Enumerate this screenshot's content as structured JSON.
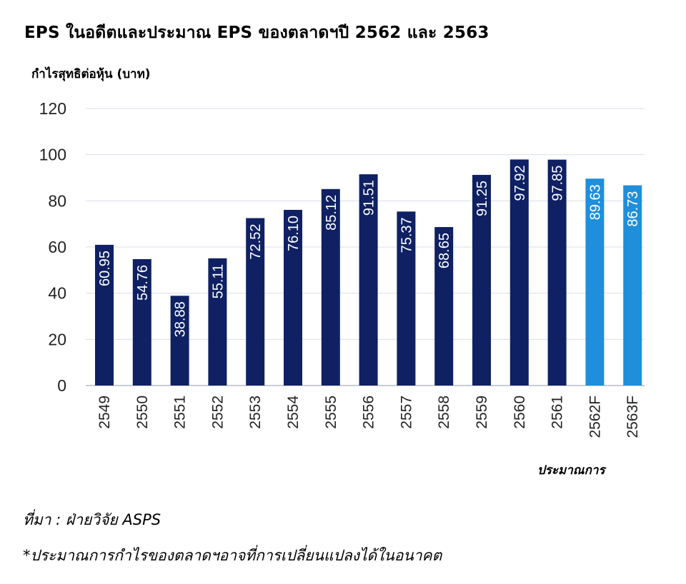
{
  "chart_data": {
    "type": "bar",
    "title": "EPS ในอดีตและประมาณ EPS ของตลาดฯปี 2562 และ 2563",
    "ylabel": "กำไรสุทธิต่อหุ้น (บาท)",
    "xlabel": "",
    "forecast_note": "ประมาณการ",
    "ylim": [
      0,
      120
    ],
    "yticks": [
      0,
      20,
      40,
      60,
      80,
      100,
      120
    ],
    "grid": true,
    "categories": [
      "2549",
      "2550",
      "2551",
      "2552",
      "2553",
      "2554",
      "2555",
      "2556",
      "2557",
      "2558",
      "2559",
      "2560",
      "2561",
      "2562F",
      "2563F"
    ],
    "values": [
      60.95,
      54.76,
      38.88,
      55.11,
      72.52,
      76.1,
      85.12,
      91.51,
      75.37,
      68.65,
      91.25,
      97.92,
      97.85,
      89.63,
      86.73
    ],
    "value_labels": [
      "60.95",
      "54.76",
      "38.88",
      "55.11",
      "72.52",
      "76.10",
      "85.12",
      "91.51",
      "75.37",
      "68.65",
      "91.25",
      "97.92",
      "97.85",
      "89.63",
      "86.73"
    ],
    "forecast": [
      false,
      false,
      false,
      false,
      false,
      false,
      false,
      false,
      false,
      false,
      false,
      false,
      false,
      true,
      true
    ],
    "colors": {
      "actual": "#0f2163",
      "forecast": "#1f8fdc",
      "grid": "#d9dee8",
      "axis": "#b8bcc6"
    }
  },
  "footer": {
    "source": "ที่มา : ฝ่ายวิจัย ASPS",
    "disclaimer": "*ประมาณการกำไรของตลาดฯอาจที่การเปลี่ยนแปลงได้ในอนาคต"
  }
}
